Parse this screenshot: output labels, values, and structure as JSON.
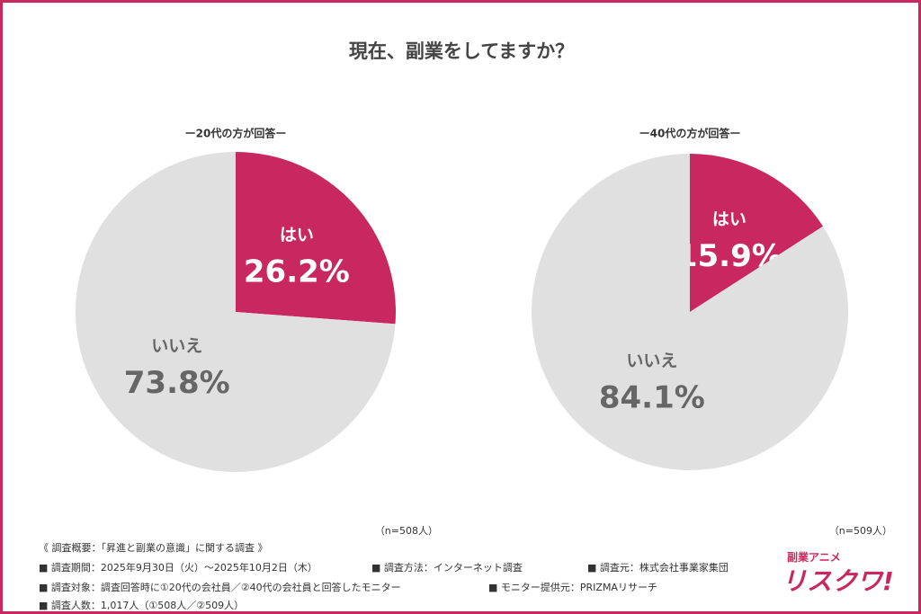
{
  "title": "現在、副業をしてますか？",
  "chart_data": [
    {
      "type": "pie",
      "subtitle": "ー20代の方が回答ー",
      "categories": [
        "はい",
        "いいえ"
      ],
      "values": [
        26.2,
        73.8
      ],
      "value_labels": [
        "26.2%",
        "73.8%"
      ],
      "colors": [
        "#c8285f",
        "#e0e0e0"
      ],
      "note": "（n=508人）"
    },
    {
      "type": "pie",
      "subtitle": "ー40代の方が回答ー",
      "categories": [
        "はい",
        "いいえ"
      ],
      "values": [
        15.9,
        84.1
      ],
      "value_labels": [
        "15.9%",
        "84.1%"
      ],
      "colors": [
        "#c8285f",
        "#e0e0e0"
      ],
      "note": "（n=509人）"
    }
  ],
  "footer": {
    "heading": "《 調査概要：「昇進と副業の意識」に関する調査 》",
    "items": [
      "■ 調査期間：2025年9月30日（火）～2025年10月2日（木）",
      "■ 調査方法：インターネット調査",
      "■ 調査元：株式会社事業家集団",
      "■ 調査対象：調査回答時に①20代の会社員／②40代の会社員と回答したモニター",
      "■ モニター提供元：PRIZMAリサーチ",
      "■ 調査人数：1,017人（①508人／②509人）"
    ]
  },
  "logo": {
    "top": "副業アニメ",
    "main": "リスクワ!"
  }
}
